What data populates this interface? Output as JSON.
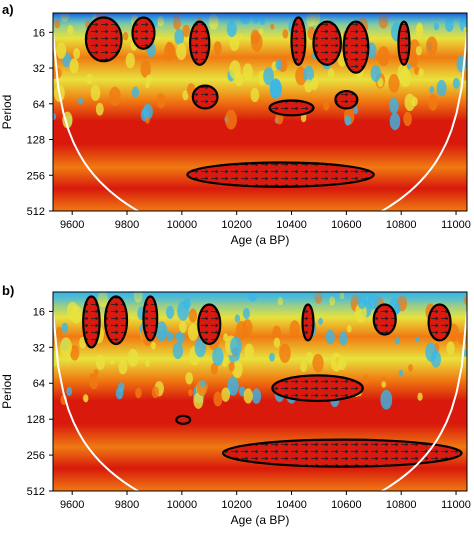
{
  "chart_data": [
    {
      "type": "heatmap",
      "panel_label": "a)",
      "xlabel": "Age (a BP)",
      "ylabel": "Period",
      "x_range": [
        9530,
        11040
      ],
      "x_ticks": [
        9600,
        9800,
        10000,
        10200,
        10400,
        10600,
        10800,
        11000
      ],
      "y_ticks": [
        16,
        32,
        64,
        128,
        256,
        512
      ],
      "y_scale": "log2",
      "y_range": [
        11,
        512
      ],
      "y_axis_inverted": true,
      "colormap": [
        "#1a4fd6",
        "#39b6e8",
        "#e8e23c",
        "#f07a12",
        "#d8190c"
      ],
      "cone_of_influence": true,
      "significance_regions": [
        {
          "x_range": [
            9650,
            9780
          ],
          "period_range": [
            12,
            28
          ]
        },
        {
          "x_range": [
            9820,
            9900
          ],
          "period_range": [
            12,
            22
          ]
        },
        {
          "x_range": [
            10030,
            10100
          ],
          "period_range": [
            13,
            30
          ]
        },
        {
          "x_range": [
            10040,
            10130
          ],
          "period_range": [
            45,
            70
          ]
        },
        {
          "x_range": [
            10320,
            10480
          ],
          "period_range": [
            60,
            80
          ]
        },
        {
          "x_range": [
            10400,
            10450
          ],
          "period_range": [
            12,
            30
          ]
        },
        {
          "x_range": [
            10480,
            10580
          ],
          "period_range": [
            13,
            30
          ]
        },
        {
          "x_range": [
            10590,
            10680
          ],
          "period_range": [
            13,
            35
          ]
        },
        {
          "x_range": [
            10790,
            10830
          ],
          "period_range": [
            13,
            30
          ]
        },
        {
          "x_range": [
            10560,
            10640
          ],
          "period_range": [
            50,
            70
          ]
        },
        {
          "x_range": [
            10020,
            10700
          ],
          "period_range": [
            200,
            320
          ]
        }
      ]
    },
    {
      "type": "heatmap",
      "panel_label": "b)",
      "xlabel": "Age (a BP)",
      "ylabel": "Period",
      "x_range": [
        9530,
        11040
      ],
      "x_ticks": [
        9600,
        9800,
        10000,
        10200,
        10400,
        10600,
        10800,
        11000
      ],
      "y_ticks": [
        16,
        32,
        64,
        128,
        256,
        512
      ],
      "y_scale": "log2",
      "y_range": [
        11,
        512
      ],
      "y_axis_inverted": true,
      "colormap": [
        "#1a4fd6",
        "#39b6e8",
        "#e8e23c",
        "#f07a12",
        "#d8190c"
      ],
      "cone_of_influence": true,
      "significance_regions": [
        {
          "x_range": [
            9640,
            9700
          ],
          "period_range": [
            12,
            32
          ]
        },
        {
          "x_range": [
            9720,
            9800
          ],
          "period_range": [
            12,
            30
          ]
        },
        {
          "x_range": [
            9860,
            9910
          ],
          "period_range": [
            12,
            28
          ]
        },
        {
          "x_range": [
            10060,
            10140
          ],
          "period_range": [
            14,
            30
          ]
        },
        {
          "x_range": [
            10440,
            10480
          ],
          "period_range": [
            14,
            28
          ]
        },
        {
          "x_range": [
            10700,
            10780
          ],
          "period_range": [
            14,
            25
          ]
        },
        {
          "x_range": [
            10900,
            10980
          ],
          "period_range": [
            14,
            28
          ]
        },
        {
          "x_range": [
            10330,
            10660
          ],
          "period_range": [
            55,
            90
          ]
        },
        {
          "x_range": [
            9980,
            10030
          ],
          "period_range": [
            120,
            140
          ]
        },
        {
          "x_range": [
            10150,
            11020
          ],
          "period_range": [
            190,
            320
          ]
        }
      ]
    }
  ]
}
